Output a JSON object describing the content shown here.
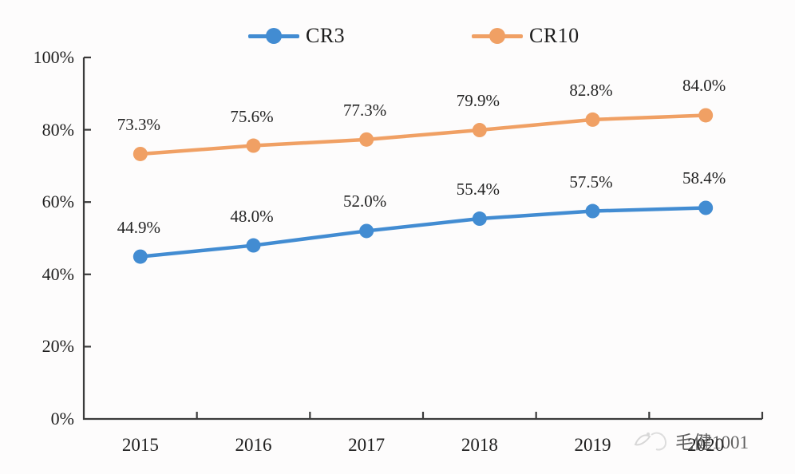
{
  "page": {
    "background": "#fdfcfc"
  },
  "legend": {
    "items": [
      {
        "label": "CR3",
        "color": "#428cd2"
      },
      {
        "label": "CR10",
        "color": "#f0a064"
      }
    ]
  },
  "chart_data": {
    "type": "line",
    "title": "",
    "xlabel": "",
    "ylabel": "",
    "categories": [
      "2015",
      "2016",
      "2017",
      "2018",
      "2019",
      "2020"
    ],
    "series": [
      {
        "name": "CR3",
        "color": "#428cd2",
        "values": [
          44.9,
          48.0,
          52.0,
          55.4,
          57.5,
          58.4
        ],
        "labels": [
          "44.9%",
          "48.0%",
          "52.0%",
          "55.4%",
          "57.5%",
          "58.4%"
        ]
      },
      {
        "name": "CR10",
        "color": "#f0a064",
        "values": [
          73.3,
          75.6,
          77.3,
          79.9,
          82.8,
          84.0
        ],
        "labels": [
          "73.3%",
          "75.6%",
          "77.3%",
          "79.9%",
          "82.8%",
          "84.0%"
        ]
      }
    ],
    "ylim": [
      0,
      100
    ],
    "y_ticks": [
      "0%",
      "20%",
      "40%",
      "60%",
      "80%",
      "100%"
    ],
    "grid": false,
    "legend_position": "top",
    "axis_color": "#3b3b3b"
  },
  "watermark": {
    "text": "毛健1001"
  }
}
